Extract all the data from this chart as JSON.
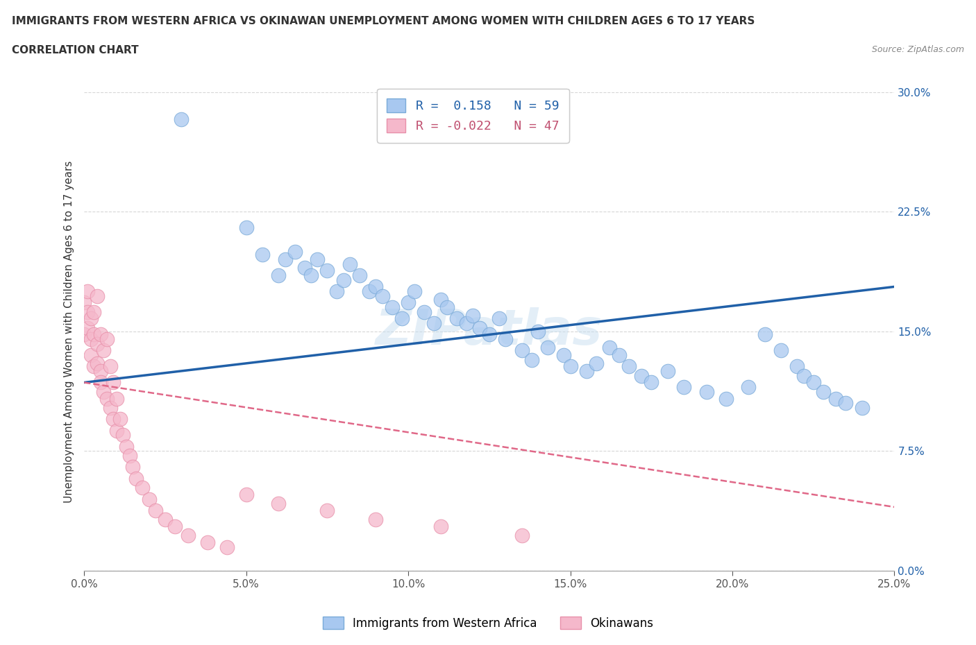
{
  "title": "IMMIGRANTS FROM WESTERN AFRICA VS OKINAWAN UNEMPLOYMENT AMONG WOMEN WITH CHILDREN AGES 6 TO 17 YEARS",
  "subtitle": "CORRELATION CHART",
  "source": "Source: ZipAtlas.com",
  "ylabel": "Unemployment Among Women with Children Ages 6 to 17 years",
  "xlim": [
    0.0,
    0.25
  ],
  "ylim": [
    0.0,
    0.3
  ],
  "xticks": [
    0.0,
    0.05,
    0.1,
    0.15,
    0.2,
    0.25
  ],
  "yticks": [
    0.0,
    0.075,
    0.15,
    0.225,
    0.3
  ],
  "blue_color": "#a8c8f0",
  "blue_edge_color": "#7aaad8",
  "pink_color": "#f5b8cb",
  "pink_edge_color": "#e890aa",
  "blue_line_color": "#2060a8",
  "pink_line_color": "#e06888",
  "legend_label_blue": "Immigrants from Western Africa",
  "legend_label_pink": "Okinawans",
  "background_color": "#ffffff",
  "grid_color": "#cccccc",
  "blue_x": [
    0.03,
    0.05,
    0.055,
    0.06,
    0.062,
    0.065,
    0.068,
    0.07,
    0.072,
    0.075,
    0.078,
    0.08,
    0.082,
    0.085,
    0.088,
    0.09,
    0.092,
    0.095,
    0.098,
    0.1,
    0.102,
    0.105,
    0.108,
    0.11,
    0.112,
    0.115,
    0.118,
    0.12,
    0.122,
    0.125,
    0.128,
    0.13,
    0.135,
    0.138,
    0.14,
    0.143,
    0.148,
    0.15,
    0.155,
    0.158,
    0.162,
    0.165,
    0.168,
    0.172,
    0.175,
    0.18,
    0.185,
    0.192,
    0.198,
    0.205,
    0.21,
    0.215,
    0.22,
    0.222,
    0.225,
    0.228,
    0.232,
    0.235,
    0.24
  ],
  "blue_y": [
    0.283,
    0.215,
    0.198,
    0.185,
    0.195,
    0.2,
    0.19,
    0.185,
    0.195,
    0.188,
    0.175,
    0.182,
    0.192,
    0.185,
    0.175,
    0.178,
    0.172,
    0.165,
    0.158,
    0.168,
    0.175,
    0.162,
    0.155,
    0.17,
    0.165,
    0.158,
    0.155,
    0.16,
    0.152,
    0.148,
    0.158,
    0.145,
    0.138,
    0.132,
    0.15,
    0.14,
    0.135,
    0.128,
    0.125,
    0.13,
    0.14,
    0.135,
    0.128,
    0.122,
    0.118,
    0.125,
    0.115,
    0.112,
    0.108,
    0.115,
    0.148,
    0.138,
    0.128,
    0.122,
    0.118,
    0.112,
    0.108,
    0.105,
    0.102
  ],
  "pink_x": [
    0.0,
    0.0,
    0.001,
    0.001,
    0.001,
    0.002,
    0.002,
    0.002,
    0.003,
    0.003,
    0.003,
    0.004,
    0.004,
    0.004,
    0.005,
    0.005,
    0.005,
    0.006,
    0.006,
    0.007,
    0.007,
    0.008,
    0.008,
    0.009,
    0.009,
    0.01,
    0.01,
    0.011,
    0.012,
    0.013,
    0.014,
    0.015,
    0.016,
    0.018,
    0.02,
    0.022,
    0.025,
    0.028,
    0.032,
    0.038,
    0.044,
    0.05,
    0.06,
    0.075,
    0.09,
    0.11,
    0.135
  ],
  "pink_y": [
    0.168,
    0.148,
    0.162,
    0.152,
    0.175,
    0.145,
    0.158,
    0.135,
    0.148,
    0.128,
    0.162,
    0.172,
    0.142,
    0.13,
    0.148,
    0.125,
    0.118,
    0.138,
    0.112,
    0.145,
    0.108,
    0.128,
    0.102,
    0.118,
    0.095,
    0.108,
    0.088,
    0.095,
    0.085,
    0.078,
    0.072,
    0.065,
    0.058,
    0.052,
    0.045,
    0.038,
    0.032,
    0.028,
    0.022,
    0.018,
    0.015,
    0.048,
    0.042,
    0.038,
    0.032,
    0.028,
    0.022
  ]
}
